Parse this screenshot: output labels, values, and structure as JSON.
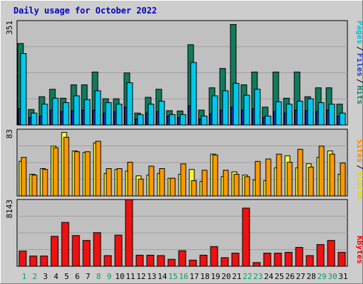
{
  "chart_data": [
    {
      "type": "bar",
      "title": "Daily usage for October 2022",
      "ymax_label": "351",
      "ylim": [
        0,
        351
      ],
      "categories": [
        "1",
        "2",
        "3",
        "4",
        "5",
        "6",
        "7",
        "8",
        "9",
        "10",
        "11",
        "12",
        "13",
        "14",
        "15",
        "16",
        "17",
        "18",
        "19",
        "20",
        "21",
        "22",
        "23",
        "24",
        "25",
        "26",
        "27",
        "28",
        "29",
        "30",
        "31"
      ],
      "weekend_days": [
        "1",
        "2",
        "8",
        "9",
        "15",
        "16",
        "22",
        "23",
        "29",
        "30"
      ],
      "legend": [
        {
          "label": "Pages",
          "color": "#00c0e0"
        },
        {
          "label": "Files",
          "color": "#2040c0"
        },
        {
          "label": "Hits",
          "color": "#108060"
        }
      ],
      "legend_separator": "/",
      "series": [
        {
          "name": "Hits",
          "color": "#107c5c",
          "values": [
            274,
            52,
            95,
            120,
            90,
            135,
            135,
            178,
            88,
            88,
            175,
            40,
            93,
            120,
            48,
            47,
            270,
            50,
            125,
            190,
            338,
            135,
            178,
            60,
            178,
            90,
            178,
            95,
            125,
            125,
            70
          ]
        },
        {
          "name": "Files",
          "color": "#1838c0",
          "values": [
            55,
            25,
            30,
            50,
            45,
            48,
            50,
            50,
            40,
            45,
            60,
            20,
            40,
            45,
            30,
            25,
            65,
            20,
            38,
            50,
            60,
            50,
            55,
            25,
            45,
            40,
            50,
            48,
            45,
            50,
            30
          ]
        },
        {
          "name": "Pages",
          "color": "#00c8ec",
          "values": [
            240,
            40,
            70,
            90,
            75,
            98,
            85,
            115,
            75,
            70,
            142,
            35,
            70,
            80,
            35,
            35,
            210,
            30,
            98,
            115,
            140,
            100,
            120,
            30,
            78,
            70,
            80,
            88,
            75,
            70,
            40
          ]
        }
      ]
    },
    {
      "type": "bar",
      "ymax_label": "83",
      "ylim": [
        0,
        83
      ],
      "legend": [
        {
          "label": "Sites",
          "color": "#ff8800"
        },
        {
          "label": "Visits",
          "color": "#ffee00"
        }
      ],
      "legend_separator": "/",
      "series": [
        {
          "name": "Visits",
          "color": "#ffff33",
          "values": [
            43,
            27,
            34,
            62,
            79,
            56,
            54,
            66,
            28,
            33,
            31,
            25,
            26,
            28,
            22,
            27,
            33,
            18,
            52,
            24,
            30,
            26,
            20,
            19,
            35,
            50,
            35,
            40,
            48,
            56,
            27
          ]
        },
        {
          "name": "Sites",
          "color": "#ff9900",
          "values": [
            48,
            26,
            33,
            60,
            73,
            55,
            55,
            68,
            34,
            34,
            42,
            21,
            37,
            34,
            22,
            40,
            19,
            32,
            51,
            32,
            27,
            24,
            43,
            46,
            52,
            42,
            58,
            36,
            62,
            52,
            41
          ]
        }
      ]
    },
    {
      "type": "bar",
      "ymax_label": "8143",
      "ylim": [
        0,
        8143
      ],
      "legend": [
        {
          "label": "KBytes",
          "color": "#ff0000"
        }
      ],
      "series": [
        {
          "name": "KBytes",
          "color": "#ee1111",
          "values": [
            1850,
            1250,
            1250,
            3650,
            5350,
            3750,
            3150,
            4100,
            1300,
            3800,
            8143,
            1350,
            1350,
            1300,
            850,
            1900,
            750,
            1350,
            2400,
            1050,
            1600,
            7100,
            450,
            1600,
            1600,
            1700,
            2300,
            1300,
            2650,
            3150,
            1700
          ]
        }
      ]
    }
  ]
}
